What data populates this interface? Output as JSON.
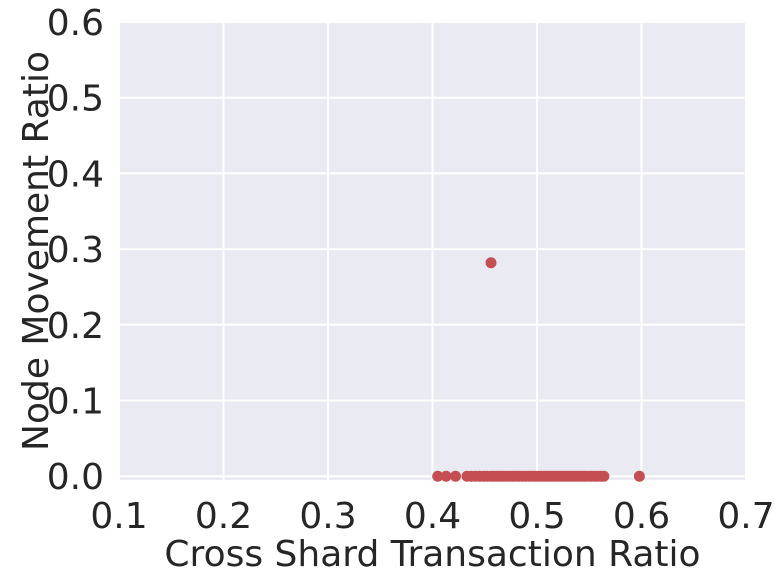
{
  "chart_data": {
    "type": "scatter",
    "xlabel": "Cross Shard Transaction Ratio",
    "ylabel": "Node Movement Ratio",
    "xlim": [
      0.1,
      0.7
    ],
    "ylim": [
      -0.005,
      0.6
    ],
    "xticks": [
      0.1,
      0.2,
      0.3,
      0.4,
      0.5,
      0.6,
      0.7
    ],
    "xtick_labels": [
      "0.1",
      "0.2",
      "0.3",
      "0.4",
      "0.5",
      "0.6",
      "0.7"
    ],
    "yticks": [
      0.0,
      0.1,
      0.2,
      0.3,
      0.4,
      0.5,
      0.6
    ],
    "ytick_labels": [
      "0.0",
      "0.1",
      "0.2",
      "0.3",
      "0.4",
      "0.5",
      "0.6"
    ],
    "grid": true,
    "point_color": "#c44e52",
    "background_color": "#eaeaf2",
    "points": [
      {
        "x": 0.405,
        "y": 0.0
      },
      {
        "x": 0.413,
        "y": 0.0
      },
      {
        "x": 0.422,
        "y": 0.0
      },
      {
        "x": 0.433,
        "y": 0.0
      },
      {
        "x": 0.437,
        "y": 0.0
      },
      {
        "x": 0.441,
        "y": 0.0
      },
      {
        "x": 0.445,
        "y": 0.0
      },
      {
        "x": 0.449,
        "y": 0.0
      },
      {
        "x": 0.452,
        "y": 0.0
      },
      {
        "x": 0.456,
        "y": 0.0
      },
      {
        "x": 0.459,
        "y": 0.0
      },
      {
        "x": 0.462,
        "y": 0.0
      },
      {
        "x": 0.465,
        "y": 0.0
      },
      {
        "x": 0.468,
        "y": 0.0
      },
      {
        "x": 0.471,
        "y": 0.0
      },
      {
        "x": 0.474,
        "y": 0.0
      },
      {
        "x": 0.477,
        "y": 0.0
      },
      {
        "x": 0.48,
        "y": 0.0
      },
      {
        "x": 0.483,
        "y": 0.0
      },
      {
        "x": 0.486,
        "y": 0.0
      },
      {
        "x": 0.489,
        "y": 0.0
      },
      {
        "x": 0.492,
        "y": 0.0
      },
      {
        "x": 0.495,
        "y": 0.0
      },
      {
        "x": 0.498,
        "y": 0.0
      },
      {
        "x": 0.501,
        "y": 0.0
      },
      {
        "x": 0.504,
        "y": 0.0
      },
      {
        "x": 0.507,
        "y": 0.0
      },
      {
        "x": 0.51,
        "y": 0.0
      },
      {
        "x": 0.513,
        "y": 0.0
      },
      {
        "x": 0.516,
        "y": 0.0
      },
      {
        "x": 0.519,
        "y": 0.0
      },
      {
        "x": 0.522,
        "y": 0.0
      },
      {
        "x": 0.525,
        "y": 0.0
      },
      {
        "x": 0.528,
        "y": 0.0
      },
      {
        "x": 0.531,
        "y": 0.0
      },
      {
        "x": 0.534,
        "y": 0.0
      },
      {
        "x": 0.537,
        "y": 0.0
      },
      {
        "x": 0.54,
        "y": 0.0
      },
      {
        "x": 0.543,
        "y": 0.0
      },
      {
        "x": 0.546,
        "y": 0.0
      },
      {
        "x": 0.549,
        "y": 0.0
      },
      {
        "x": 0.552,
        "y": 0.0
      },
      {
        "x": 0.555,
        "y": 0.0
      },
      {
        "x": 0.558,
        "y": 0.0
      },
      {
        "x": 0.561,
        "y": 0.0
      },
      {
        "x": 0.564,
        "y": 0.0
      },
      {
        "x": 0.598,
        "y": 0.0
      },
      {
        "x": 0.456,
        "y": 0.282
      }
    ]
  }
}
